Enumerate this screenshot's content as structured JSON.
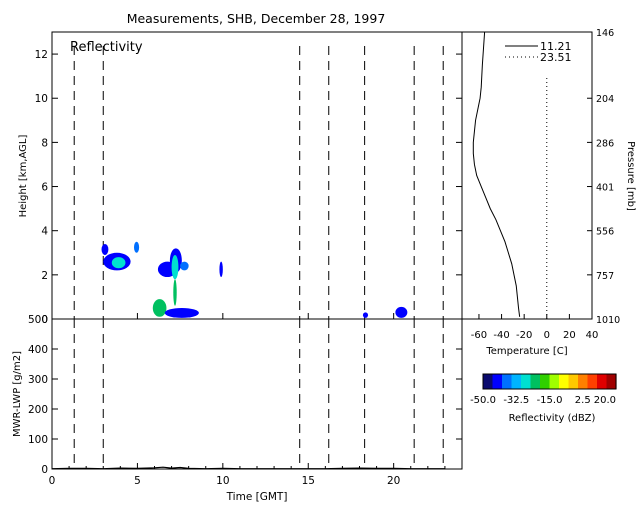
{
  "title": "Measurements, SHB, December 28, 1997",
  "chart_data": [
    {
      "type": "heatmap",
      "panel": "reflectivity",
      "label": "Reflectivity",
      "ylabel": "Height [km,AGL]",
      "xlim": [
        0,
        24
      ],
      "ylim": [
        0,
        13
      ],
      "yticks": [
        0,
        2,
        4,
        6,
        8,
        10,
        12
      ],
      "dashed_times": [
        1.3,
        3.0,
        14.5,
        16.2,
        18.3,
        21.2,
        22.9
      ],
      "echoes": [
        {
          "t0": 2.9,
          "t1": 3.3,
          "h0": 2.9,
          "h1": 3.4,
          "dbz": -45
        },
        {
          "t0": 3.0,
          "t1": 4.6,
          "h0": 2.2,
          "h1": 3.0,
          "dbz": -42
        },
        {
          "t0": 3.5,
          "t1": 4.3,
          "h0": 2.3,
          "h1": 2.8,
          "dbz": -30
        },
        {
          "t0": 4.8,
          "t1": 5.1,
          "h0": 3.0,
          "h1": 3.5,
          "dbz": -40
        },
        {
          "t0": 6.2,
          "t1": 7.3,
          "h0": 1.9,
          "h1": 2.6,
          "dbz": -45
        },
        {
          "t0": 6.9,
          "t1": 7.6,
          "h0": 2.1,
          "h1": 3.2,
          "dbz": -45
        },
        {
          "t0": 7.0,
          "t1": 7.4,
          "h0": 1.8,
          "h1": 2.9,
          "dbz": -28
        },
        {
          "t0": 7.1,
          "t1": 7.3,
          "h0": 0.6,
          "h1": 1.8,
          "dbz": -25
        },
        {
          "t0": 7.5,
          "t1": 8.0,
          "h0": 2.2,
          "h1": 2.6,
          "dbz": -40
        },
        {
          "t0": 9.8,
          "t1": 10.0,
          "h0": 1.9,
          "h1": 2.6,
          "dbz": -45
        },
        {
          "t0": 5.9,
          "t1": 6.7,
          "h0": 0.1,
          "h1": 0.9,
          "dbz": -25
        },
        {
          "t0": 6.6,
          "t1": 8.6,
          "h0": 0.05,
          "h1": 0.5,
          "dbz": -44
        },
        {
          "t0": 18.2,
          "t1": 18.5,
          "h0": 0.05,
          "h1": 0.3,
          "dbz": -44
        },
        {
          "t0": 20.1,
          "t1": 20.8,
          "h0": 0.05,
          "h1": 0.55,
          "dbz": -42
        }
      ]
    },
    {
      "type": "line",
      "panel": "mwr_lwp",
      "ylabel": "MWR-LWP [g/m2]",
      "xlabel": "Time [GMT]",
      "xlim": [
        0,
        24
      ],
      "ylim": [
        0,
        500
      ],
      "xticks": [
        0,
        5,
        10,
        15,
        20
      ],
      "yticks": [
        0,
        100,
        200,
        300,
        400,
        500
      ],
      "dashed_times": [
        1.3,
        3.0,
        14.5,
        16.2,
        18.3,
        21.2,
        22.9
      ],
      "x": [
        0,
        1,
        2,
        3,
        4,
        5,
        6,
        6.5,
        7,
        7.5,
        8,
        9,
        10,
        11,
        12,
        13,
        14,
        15,
        16,
        17,
        18,
        19,
        20,
        21,
        22,
        23
      ],
      "y": [
        1,
        2,
        2,
        1,
        3,
        2,
        4,
        6,
        3,
        5,
        2,
        1,
        2,
        1,
        1,
        1,
        1,
        1,
        1,
        2,
        3,
        2,
        2,
        1,
        1,
        1
      ]
    },
    {
      "type": "line",
      "panel": "temperature_profile",
      "xlabel": "Temperature [C]",
      "ylabel": "Pressure [mb]",
      "xlim": [
        -75,
        40
      ],
      "ylim": [
        0,
        13
      ],
      "xticks": [
        -60,
        -40,
        -20,
        0,
        20,
        40
      ],
      "pressure_labels": [
        {
          "h": 0,
          "label": "1010"
        },
        {
          "h": 2,
          "label": "757"
        },
        {
          "h": 4,
          "label": "556"
        },
        {
          "h": 6,
          "label": "401"
        },
        {
          "h": 8,
          "label": "286"
        },
        {
          "h": 10,
          "label": "204"
        },
        {
          "h": 13,
          "label": "146"
        }
      ],
      "legend": [
        "11.21",
        "23.51"
      ],
      "legend_position": "top-right",
      "series": [
        {
          "name": "11.21",
          "style": "solid",
          "x": [
            -24,
            -25,
            -26,
            -27,
            -29,
            -31,
            -34,
            -37,
            -41,
            -45,
            -50,
            -54,
            -58,
            -62,
            -64,
            -65,
            -65,
            -64,
            -63,
            -61,
            -59,
            -58,
            -57,
            -55
          ],
          "y": [
            0.1,
            0.5,
            1.0,
            1.5,
            2.0,
            2.5,
            3.0,
            3.5,
            4.0,
            4.5,
            5.0,
            5.5,
            6.0,
            6.5,
            7.0,
            7.5,
            8.0,
            8.5,
            9.0,
            9.5,
            10.0,
            10.5,
            11.5,
            13.0
          ]
        },
        {
          "name": "23.51",
          "style": "dotted",
          "x": [
            0,
            0
          ],
          "y": [
            0,
            11
          ]
        }
      ]
    }
  ],
  "colorbar": {
    "label": "Reflectivity (dBZ)",
    "tick_labels": [
      "-50.0",
      "-32.5",
      "-15.0",
      "2.5",
      "20.0"
    ],
    "min": -50,
    "max": 20,
    "colors": [
      "#0a0a6e",
      "#0000ff",
      "#0070ff",
      "#00b4ff",
      "#00e0d0",
      "#00c060",
      "#30d000",
      "#a0ff00",
      "#ffff00",
      "#ffc800",
      "#ff8000",
      "#ff4000",
      "#e00000",
      "#a00000"
    ]
  }
}
